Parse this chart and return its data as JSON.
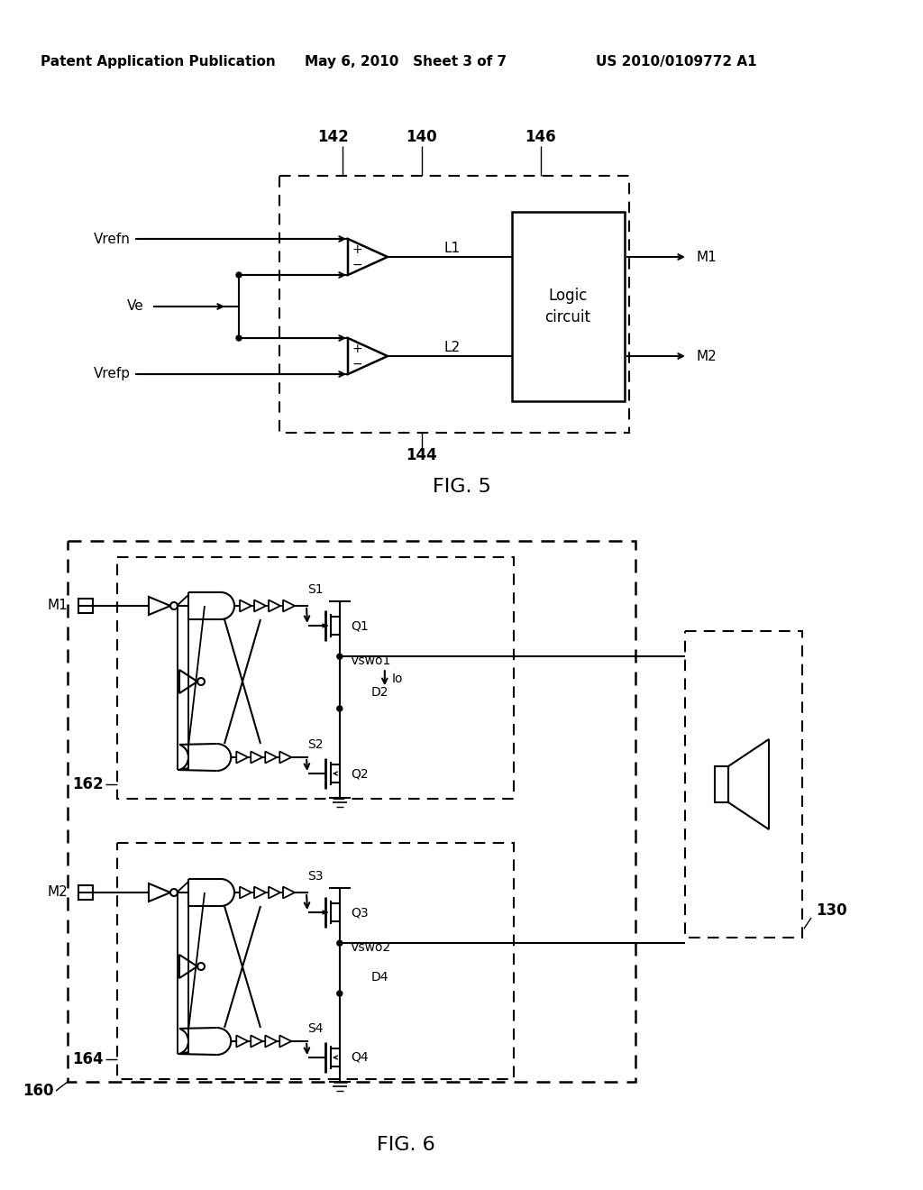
{
  "bg_color": "#ffffff",
  "header_left": "Patent Application Publication",
  "header_mid": "May 6, 2010   Sheet 3 of 7",
  "header_right": "US 2010/0109772 A1",
  "fig5_label": "FIG. 5",
  "fig6_label": "FIG. 6"
}
